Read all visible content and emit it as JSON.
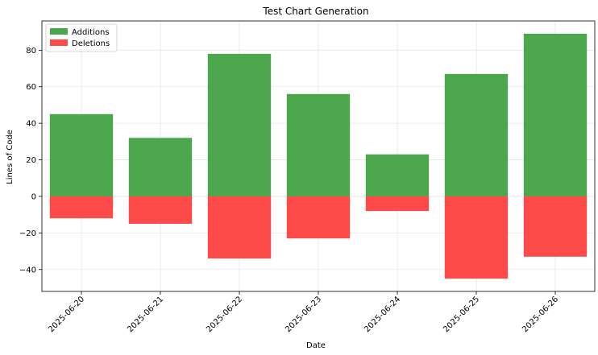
{
  "chart_data": {
    "type": "bar",
    "title": "Test Chart Generation",
    "xlabel": "Date",
    "ylabel": "Lines of Code",
    "categories": [
      "2025-06-20",
      "2025-06-21",
      "2025-06-22",
      "2025-06-23",
      "2025-06-24",
      "2025-06-25",
      "2025-06-26"
    ],
    "series": [
      {
        "name": "Additions",
        "color": "#4ca64c",
        "values": [
          45,
          32,
          78,
          56,
          23,
          67,
          89
        ]
      },
      {
        "name": "Deletions",
        "color": "#ff4a4a",
        "values": [
          -12,
          -15,
          -34,
          -23,
          -8,
          -45,
          -33
        ]
      }
    ],
    "ylim": [
      -52,
      96
    ],
    "yticks": [
      -40,
      -20,
      0,
      20,
      40,
      60,
      80
    ],
    "grid": true,
    "legend_position": "top-left"
  }
}
